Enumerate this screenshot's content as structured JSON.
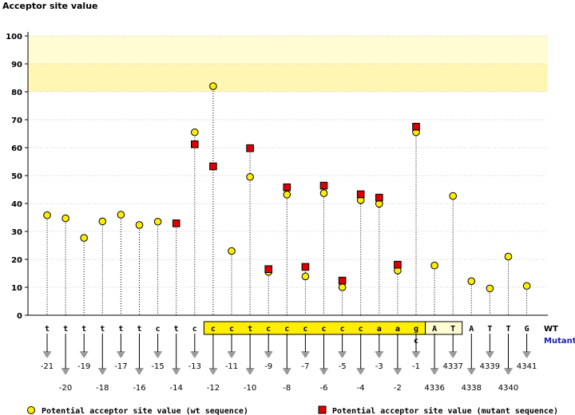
{
  "chart_data": {
    "type": "scatter",
    "title": "",
    "ylabel": "Acceptor site value",
    "ylim": [
      0,
      100
    ],
    "yticks": [
      0,
      10,
      20,
      30,
      40,
      50,
      60,
      70,
      80,
      90,
      100
    ],
    "highlight_band": [
      80,
      100
    ],
    "grid": true,
    "bases_wt": [
      "t",
      "t",
      "t",
      "t",
      "t",
      "t",
      "c",
      "t",
      "c",
      "c",
      "c",
      "t",
      "c",
      "c",
      "c",
      "c",
      "c",
      "c",
      "a",
      "a",
      "g",
      "A",
      "T",
      "A",
      "T",
      "T",
      "G"
    ],
    "positions": [
      "-21",
      "-20",
      "-19",
      "-18",
      "-17",
      "-16",
      "-15",
      "-14",
      "-13",
      "-12",
      "-11",
      "-10",
      "-9",
      "-8",
      "-7",
      "-6",
      "-5",
      "-4",
      "-3",
      "-2",
      "-1",
      "4336",
      "4337",
      "4338",
      "4339",
      "4340",
      "4341"
    ],
    "mutant_label": "c",
    "mutant_index": 20,
    "boxed_exon_start": 9,
    "boxed_exon_end": 20,
    "boxed_intron_start": 21,
    "boxed_intron_end": 22,
    "row_labels": {
      "wt": "WT",
      "mutant": "Mutant"
    },
    "series": [
      {
        "name": "Potential acceptor site value (wt sequence)",
        "marker": "circle",
        "color": "#ffee00",
        "values": [
          35.8,
          34.7,
          27.7,
          33.6,
          36.0,
          32.3,
          33.5,
          32.9,
          65.5,
          82.0,
          23.0,
          49.5,
          15.5,
          43.2,
          13.9,
          43.7,
          10.0,
          41.2,
          39.9,
          16.0,
          65.5,
          17.8,
          42.7,
          12.2,
          9.6,
          21.0,
          10.5
        ]
      },
      {
        "name": "Potential acceptor site value (mutant sequence)",
        "marker": "square",
        "color": "#dd0000",
        "values": [
          null,
          null,
          null,
          null,
          null,
          null,
          null,
          32.9,
          61.2,
          53.3,
          null,
          59.8,
          16.5,
          45.8,
          17.3,
          46.4,
          12.4,
          43.3,
          42.1,
          18.1,
          67.5,
          null,
          null,
          null,
          null,
          null,
          null
        ]
      }
    ]
  }
}
